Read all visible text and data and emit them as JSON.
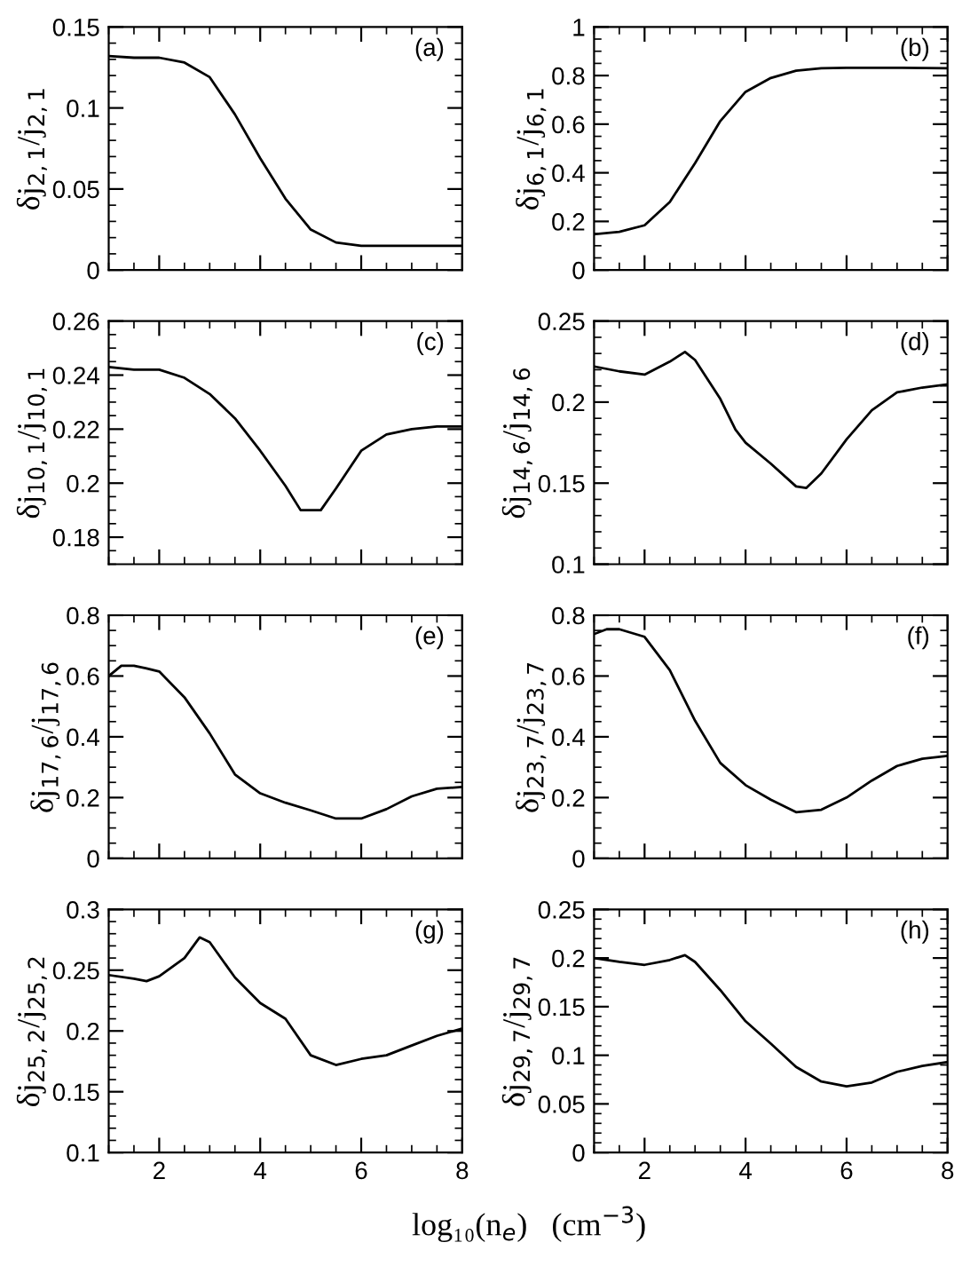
{
  "chart_data": [
    {
      "type": "line",
      "ylabel": "δj$_{2,1}$/j$_{2,1}$",
      "annotations": [
        "(a)"
      ],
      "tick_labels": "y",
      "xlim": [
        1,
        8
      ],
      "xticks": [
        2,
        4,
        6,
        8
      ],
      "ylim": [
        0,
        0.15
      ],
      "yticks": [
        0,
        0.05,
        0.1,
        0.15
      ],
      "x": [
        1,
        1.5,
        2,
        2.5,
        3,
        3.5,
        4,
        4.5,
        5,
        5.5,
        6,
        7,
        8
      ],
      "series": [
        {
          "color": "#000000",
          "values": [
            0.132,
            0.131,
            0.131,
            0.128,
            0.119,
            0.096,
            0.069,
            0.044,
            0.025,
            0.017,
            0.015,
            0.015,
            0.015
          ]
        }
      ]
    },
    {
      "type": "line",
      "ylabel": "δj$_{6,1}$/j$_{6,1}$",
      "annotations": [
        "(b)"
      ],
      "tick_labels": "y",
      "xlim": [
        1,
        8
      ],
      "xticks": [
        2,
        4,
        6,
        8
      ],
      "ylim": [
        0,
        1
      ],
      "yticks": [
        0,
        0.2,
        0.4,
        0.6,
        0.8,
        1
      ],
      "x": [
        1,
        1.5,
        2,
        2.5,
        3,
        3.5,
        4,
        4.5,
        5,
        5.5,
        6,
        7,
        8
      ],
      "series": [
        {
          "color": "#000000",
          "values": [
            0.147,
            0.157,
            0.184,
            0.28,
            0.44,
            0.613,
            0.733,
            0.79,
            0.82,
            0.83,
            0.832,
            0.832,
            0.83
          ]
        }
      ]
    },
    {
      "type": "line",
      "ylabel": "δj$_{10,1}$/j$_{10,1}$",
      "annotations": [
        "(c)"
      ],
      "tick_labels": "y",
      "xlim": [
        1,
        8
      ],
      "xticks": [
        2,
        4,
        6,
        8
      ],
      "ylim": [
        0.17,
        0.26
      ],
      "yticks": [
        0.18,
        0.2,
        0.22,
        0.24,
        0.26
      ],
      "x": [
        1,
        1.5,
        2,
        2.5,
        3,
        3.5,
        4,
        4.5,
        4.8,
        5.2,
        5.5,
        6,
        6.5,
        7,
        7.5,
        8
      ],
      "series": [
        {
          "color": "#000000",
          "values": [
            0.243,
            0.242,
            0.242,
            0.239,
            0.233,
            0.224,
            0.212,
            0.199,
            0.19,
            0.19,
            0.198,
            0.212,
            0.218,
            0.22,
            0.221,
            0.221
          ]
        }
      ]
    },
    {
      "type": "line",
      "ylabel": "δj$_{14,6}$/j$_{14,6}$",
      "annotations": [
        "(d)"
      ],
      "tick_labels": "y",
      "xlim": [
        1,
        8
      ],
      "xticks": [
        2,
        4,
        6,
        8
      ],
      "ylim": [
        0.1,
        0.25
      ],
      "yticks": [
        0.1,
        0.15,
        0.2,
        0.25
      ],
      "x": [
        1,
        1.5,
        2,
        2.5,
        2.8,
        3,
        3.5,
        3.8,
        4,
        4.5,
        5,
        5.2,
        5.5,
        6,
        6.5,
        7,
        7.5,
        8
      ],
      "series": [
        {
          "color": "#000000",
          "values": [
            0.222,
            0.219,
            0.217,
            0.225,
            0.231,
            0.226,
            0.202,
            0.183,
            0.175,
            0.162,
            0.148,
            0.147,
            0.156,
            0.177,
            0.195,
            0.206,
            0.209,
            0.211
          ]
        }
      ]
    },
    {
      "type": "line",
      "ylabel": "δj$_{17,6}$/j$_{17,6}$",
      "annotations": [
        "(e)"
      ],
      "tick_labels": "y",
      "xlim": [
        1,
        8
      ],
      "xticks": [
        2,
        4,
        6,
        8
      ],
      "ylim": [
        0,
        0.8
      ],
      "yticks": [
        0,
        0.2,
        0.4,
        0.6,
        0.8
      ],
      "x": [
        1,
        1.25,
        1.5,
        1.75,
        2,
        2.5,
        3,
        3.5,
        4,
        4.5,
        5,
        5.5,
        6,
        6.5,
        7,
        7.5,
        8
      ],
      "series": [
        {
          "color": "#000000",
          "values": [
            0.6,
            0.634,
            0.634,
            0.625,
            0.615,
            0.53,
            0.411,
            0.276,
            0.214,
            0.183,
            0.158,
            0.131,
            0.131,
            0.162,
            0.204,
            0.229,
            0.235
          ]
        }
      ]
    },
    {
      "type": "line",
      "ylabel": "δj$_{23,7}$/j$_{23,7}$",
      "annotations": [
        "(f)"
      ],
      "tick_labels": "y",
      "xlim": [
        1,
        8
      ],
      "xticks": [
        2,
        4,
        6,
        8
      ],
      "ylim": [
        0,
        0.8
      ],
      "yticks": [
        0,
        0.2,
        0.4,
        0.6,
        0.8
      ],
      "x": [
        1,
        1.25,
        1.5,
        2,
        2.5,
        3,
        3.5,
        4,
        4.5,
        5,
        5.5,
        6,
        6.5,
        7,
        7.5,
        8
      ],
      "series": [
        {
          "color": "#000000",
          "values": [
            0.738,
            0.754,
            0.754,
            0.729,
            0.619,
            0.453,
            0.314,
            0.241,
            0.193,
            0.152,
            0.16,
            0.2,
            0.256,
            0.304,
            0.328,
            0.337
          ]
        }
      ]
    },
    {
      "type": "line",
      "ylabel": "δj$_{25,2}$/j$_{25,2}$",
      "annotations": [
        "(g)"
      ],
      "xlabel": "log₁₀(n$_{e}$)   (cm$^{−3}$)",
      "xlim": [
        1,
        8
      ],
      "xticks": [
        2,
        4,
        6,
        8
      ],
      "ylim": [
        0.1,
        0.3
      ],
      "yticks": [
        0.1,
        0.15,
        0.2,
        0.25,
        0.3
      ],
      "x": [
        1,
        1.5,
        1.75,
        2,
        2.5,
        2.8,
        3,
        3.5,
        4,
        4.5,
        5,
        5.5,
        6,
        6.5,
        7,
        7.5,
        8
      ],
      "series": [
        {
          "color": "#000000",
          "values": [
            0.246,
            0.243,
            0.241,
            0.245,
            0.26,
            0.277,
            0.273,
            0.244,
            0.223,
            0.21,
            0.18,
            0.172,
            0.177,
            0.18,
            0.188,
            0.196,
            0.202
          ]
        }
      ]
    },
    {
      "type": "line",
      "ylabel": "δj$_{29,7}$/j$_{29,7}$",
      "annotations": [
        "(h)"
      ],
      "xlim": [
        1,
        8
      ],
      "xticks": [
        2,
        4,
        6,
        8
      ],
      "ylim": [
        0,
        0.25
      ],
      "yticks": [
        0,
        0.05,
        0.1,
        0.15,
        0.2,
        0.25
      ],
      "x": [
        1,
        1.5,
        2,
        2.5,
        2.8,
        3,
        3.5,
        4,
        4.5,
        5,
        5.5,
        6,
        6.5,
        7,
        7.5,
        8
      ],
      "series": [
        {
          "color": "#000000",
          "values": [
            0.2,
            0.196,
            0.193,
            0.198,
            0.203,
            0.196,
            0.167,
            0.135,
            0.112,
            0.088,
            0.073,
            0.068,
            0.072,
            0.083,
            0.089,
            0.093
          ]
        }
      ]
    }
  ]
}
